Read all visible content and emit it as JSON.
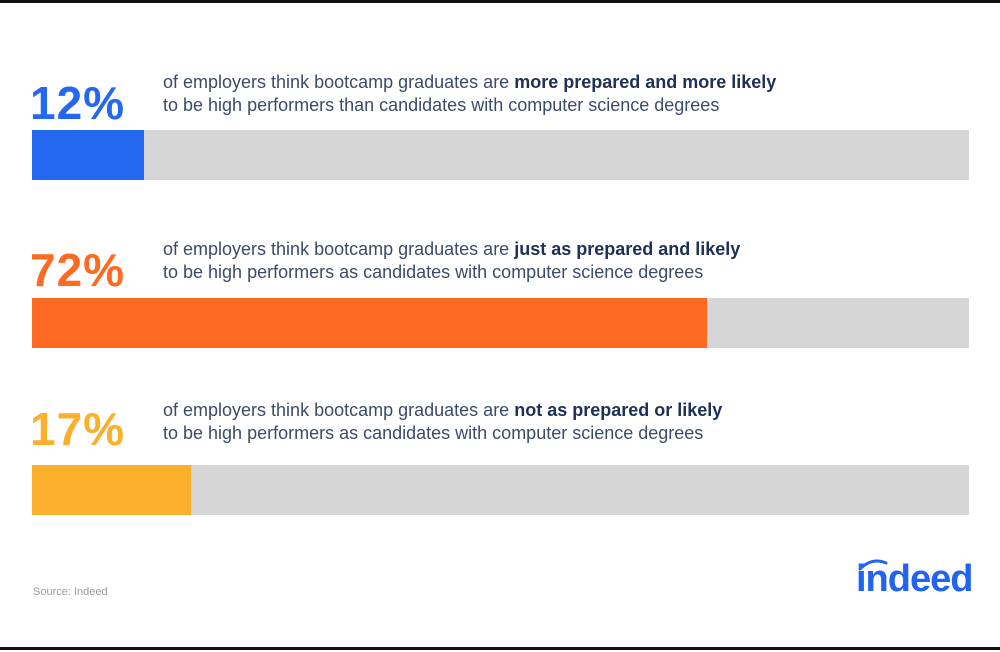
{
  "chart_data": {
    "type": "bar",
    "orientation": "horizontal",
    "xlim": [
      0,
      100
    ],
    "bars": [
      {
        "value": 12,
        "value_label": "12%",
        "text_pre": "of employers think bootcamp graduates are ",
        "text_bold": "more prepared and more likely",
        "text_line2": "to be high performers than candidates with computer science degrees",
        "color": "#2467f0"
      },
      {
        "value": 72,
        "value_label": "72%",
        "text_pre": "of employers think bootcamp graduates are ",
        "text_bold": "just as prepared and likely",
        "text_line2": "to be high performers as candidates with computer science degrees",
        "color": "#ff6a22"
      },
      {
        "value": 17,
        "value_label": "17%",
        "text_pre": "of employers think bootcamp graduates are ",
        "text_bold": "not as prepared or likely",
        "text_line2": "to be high performers as candidates with computer science degrees",
        "color": "#fbb02c"
      }
    ],
    "track_color": "#d6d6d6"
  },
  "source": "Source: Indeed",
  "logo": {
    "text": "indeed",
    "color": "#2164f3"
  }
}
